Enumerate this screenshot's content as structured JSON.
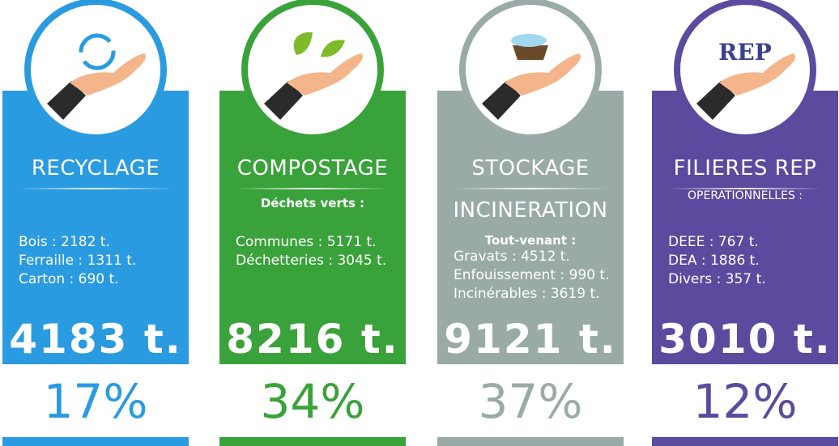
{
  "cards": [
    {
      "heading": [
        "RECYCLAGE"
      ],
      "items": [
        "Bois : 2182 t.",
        "Ferraille : 1311 t.",
        "Carton : 690 t."
      ],
      "total": "4183 t.",
      "share": "17%"
    },
    {
      "heading": [
        "COMPOSTAGE"
      ],
      "subheading": "Déchets verts :",
      "items": [
        "Communes : 5171 t.",
        "Déchetteries : 3045 t."
      ],
      "total": "8216 t.",
      "share": "34%"
    },
    {
      "heading": [
        "STOCKAGE",
        "INCINERATION"
      ],
      "subheading": "Tout-venant :",
      "items": [
        "Gravats : 4512 t.",
        "Enfouissement : 990 t.",
        "Incinérables : 3619 t."
      ],
      "total": "9121 t.",
      "share": "37%"
    },
    {
      "heading": [
        "FILIERES REP"
      ],
      "note": "OPERATIONNELLES :",
      "icon_text": "REP",
      "items": [
        "DEEE : 767 t.",
        "DEA : 1886 t.",
        "Divers : 357 t."
      ],
      "total": "3010 t.",
      "share": "12%"
    }
  ]
}
